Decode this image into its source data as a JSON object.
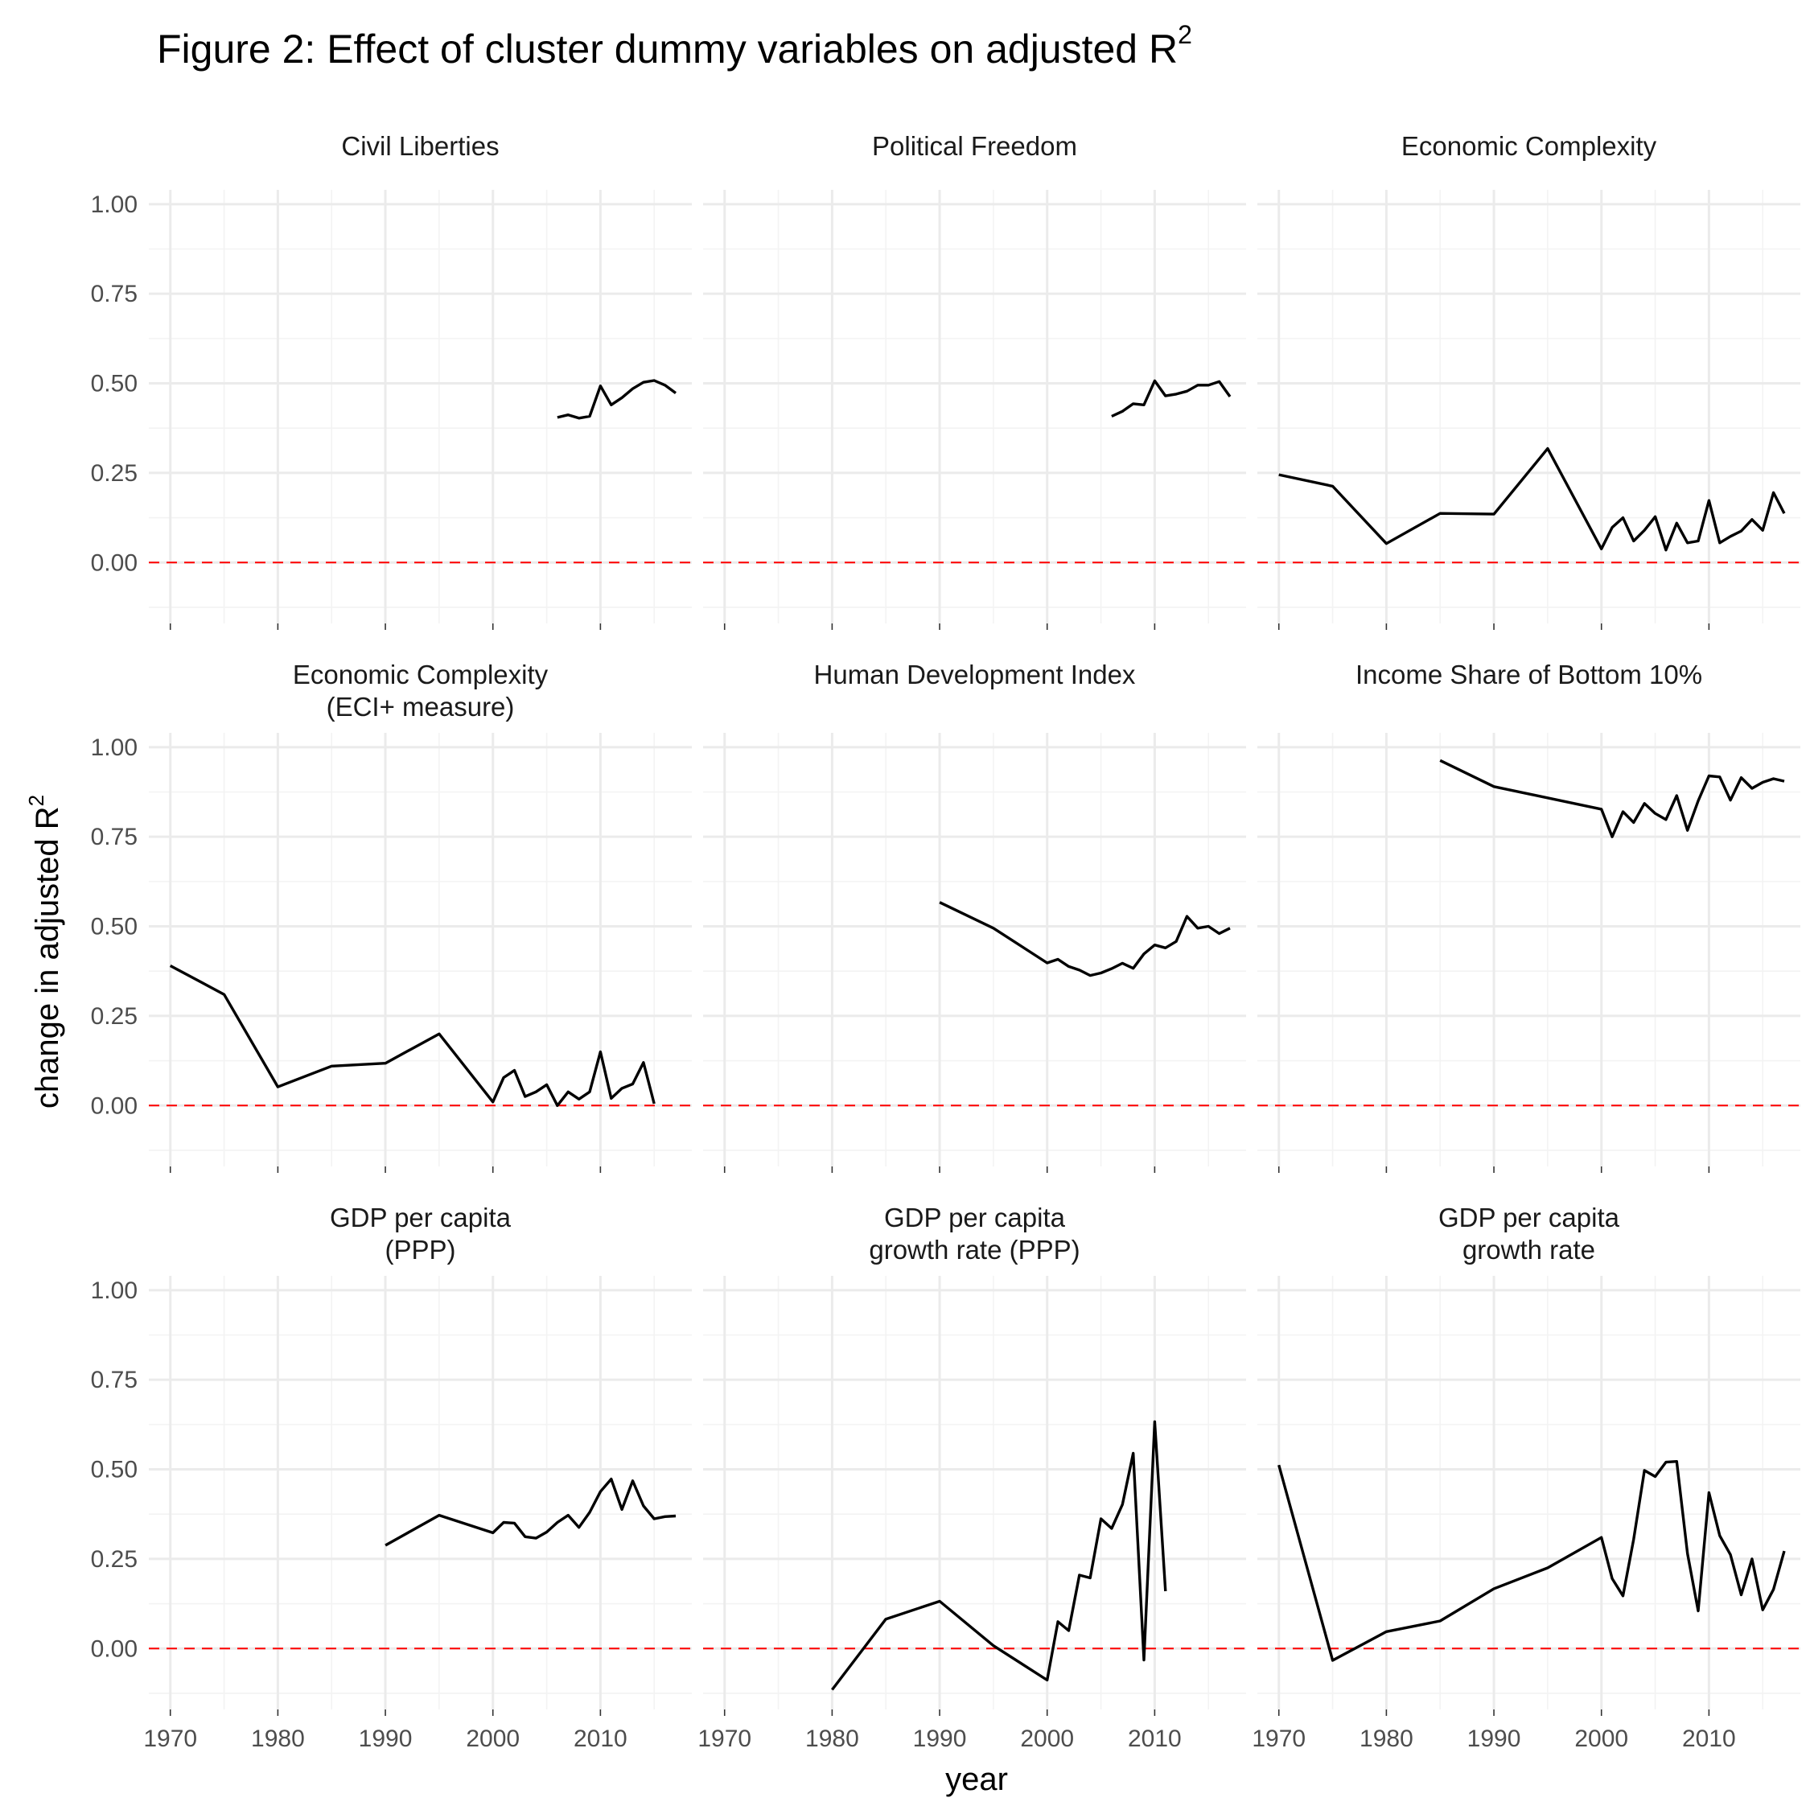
{
  "figure": {
    "title": "Figure 2: Effect of cluster dummy variables on adjusted R",
    "title_superscript": "2",
    "ylabel": "change in adjusted R",
    "ylabel_superscript": "2",
    "xlabel": "year",
    "reference_line_color": "#ff0000",
    "line_color": "#000000",
    "grid_color": "#ebebeb"
  },
  "chart_data": {
    "type": "line",
    "layout": "facet-grid 3x3",
    "xlabel": "year",
    "ylabel": "change in adjusted R2",
    "xlim": [
      1968,
      2018.5
    ],
    "ylim": [
      -0.17,
      1.04
    ],
    "x_ticks": [
      "1970",
      "1980",
      "1990",
      "2000",
      "2010"
    ],
    "y_ticks": [
      "1.00",
      "0.75",
      "0.50",
      "0.25",
      "0.00"
    ],
    "x_tick_values": [
      1970,
      1980,
      1990,
      2000,
      2010
    ],
    "y_tick_values": [
      1.0,
      0.75,
      0.5,
      0.25,
      0.0
    ],
    "reference_line_y": 0,
    "grid": true,
    "panels": [
      {
        "title_lines": [
          "Civil Liberties"
        ],
        "x": [
          2006,
          2007,
          2008,
          2009,
          2010,
          2011,
          2012,
          2013,
          2014,
          2015,
          2016,
          2017
        ],
        "y": [
          0.405,
          0.412,
          0.403,
          0.408,
          0.493,
          0.44,
          0.46,
          0.485,
          0.503,
          0.508,
          0.495,
          0.473
        ]
      },
      {
        "title_lines": [
          "Political Freedom"
        ],
        "x": [
          2006,
          2007,
          2008,
          2009,
          2010,
          2011,
          2012,
          2013,
          2014,
          2015,
          2016,
          2017
        ],
        "y": [
          0.408,
          0.422,
          0.443,
          0.44,
          0.507,
          0.465,
          0.47,
          0.478,
          0.495,
          0.495,
          0.505,
          0.463
        ]
      },
      {
        "title_lines": [
          "Economic Complexity"
        ],
        "x": [
          1970,
          1975,
          1980,
          1985,
          1990,
          1995,
          2000,
          2001,
          2002,
          2003,
          2004,
          2005,
          2006,
          2007,
          2008,
          2009,
          2010,
          2011,
          2012,
          2013,
          2014,
          2015,
          2016,
          2017
        ],
        "y": [
          0.245,
          0.213,
          0.053,
          0.137,
          0.135,
          0.318,
          0.038,
          0.098,
          0.125,
          0.06,
          0.09,
          0.128,
          0.035,
          0.11,
          0.055,
          0.06,
          0.173,
          0.055,
          0.073,
          0.088,
          0.12,
          0.09,
          0.195,
          0.137
        ]
      },
      {
        "title_lines": [
          "Economic Complexity",
          "(ECI+ measure)"
        ],
        "x": [
          1970,
          1975,
          1980,
          1985,
          1990,
          1995,
          2000,
          2001,
          2002,
          2003,
          2004,
          2005,
          2006,
          2007,
          2008,
          2009,
          2010,
          2011,
          2012,
          2013,
          2014,
          2015
        ],
        "y": [
          0.39,
          0.31,
          0.052,
          0.11,
          0.118,
          0.2,
          0.01,
          0.078,
          0.098,
          0.025,
          0.038,
          0.058,
          0.0,
          0.038,
          0.018,
          0.038,
          0.15,
          0.02,
          0.048,
          0.06,
          0.12,
          0.005
        ]
      },
      {
        "title_lines": [
          "Human Development Index"
        ],
        "x": [
          1990,
          1995,
          2000,
          2001,
          2002,
          2003,
          2004,
          2005,
          2006,
          2007,
          2008,
          2009,
          2010,
          2011,
          2012,
          2013,
          2014,
          2015,
          2016,
          2017
        ],
        "y": [
          0.567,
          0.495,
          0.398,
          0.408,
          0.388,
          0.378,
          0.363,
          0.37,
          0.382,
          0.397,
          0.383,
          0.423,
          0.448,
          0.44,
          0.458,
          0.528,
          0.495,
          0.5,
          0.48,
          0.495
        ]
      },
      {
        "title_lines": [
          "Income Share of Bottom 10%"
        ],
        "x": [
          1985,
          1990,
          2000,
          2001,
          2002,
          2003,
          2004,
          2005,
          2006,
          2007,
          2008,
          2009,
          2010,
          2011,
          2012,
          2013,
          2014,
          2015,
          2016,
          2017
        ],
        "y": [
          0.963,
          0.89,
          0.827,
          0.75,
          0.82,
          0.79,
          0.843,
          0.815,
          0.798,
          0.865,
          0.768,
          0.85,
          0.92,
          0.917,
          0.852,
          0.915,
          0.885,
          0.902,
          0.912,
          0.905
        ]
      },
      {
        "title_lines": [
          "GDP per capita",
          "(PPP)"
        ],
        "x": [
          1990,
          1995,
          2000,
          2001,
          2002,
          2003,
          2004,
          2005,
          2006,
          2007,
          2008,
          2009,
          2010,
          2011,
          2012,
          2013,
          2014,
          2015,
          2016,
          2017
        ],
        "y": [
          0.288,
          0.372,
          0.323,
          0.352,
          0.35,
          0.312,
          0.308,
          0.325,
          0.352,
          0.372,
          0.338,
          0.38,
          0.438,
          0.473,
          0.388,
          0.468,
          0.398,
          0.362,
          0.368,
          0.37
        ]
      },
      {
        "title_lines": [
          "GDP per capita",
          "growth rate (PPP)"
        ],
        "x": [
          1980,
          1985,
          1990,
          1995,
          2000,
          2001,
          2002,
          2003,
          2004,
          2005,
          2006,
          2007,
          2008,
          2009,
          2010,
          2011
        ],
        "y": [
          -0.115,
          0.082,
          0.132,
          0.008,
          -0.088,
          0.075,
          0.05,
          0.205,
          0.197,
          0.362,
          0.335,
          0.402,
          0.545,
          -0.032,
          0.633,
          0.16
        ]
      },
      {
        "title_lines": [
          "GDP per capita",
          "growth rate"
        ],
        "x": [
          1970,
          1975,
          1980,
          1985,
          1990,
          1995,
          2000,
          2001,
          2002,
          2003,
          2004,
          2005,
          2006,
          2007,
          2008,
          2009,
          2010,
          2011,
          2012,
          2013,
          2014,
          2015,
          2016,
          2017
        ],
        "y": [
          0.512,
          -0.033,
          0.047,
          0.077,
          0.167,
          0.225,
          0.31,
          0.195,
          0.147,
          0.305,
          0.497,
          0.48,
          0.52,
          0.522,
          0.265,
          0.105,
          0.435,
          0.315,
          0.262,
          0.15,
          0.25,
          0.108,
          0.165,
          0.272
        ]
      }
    ]
  }
}
